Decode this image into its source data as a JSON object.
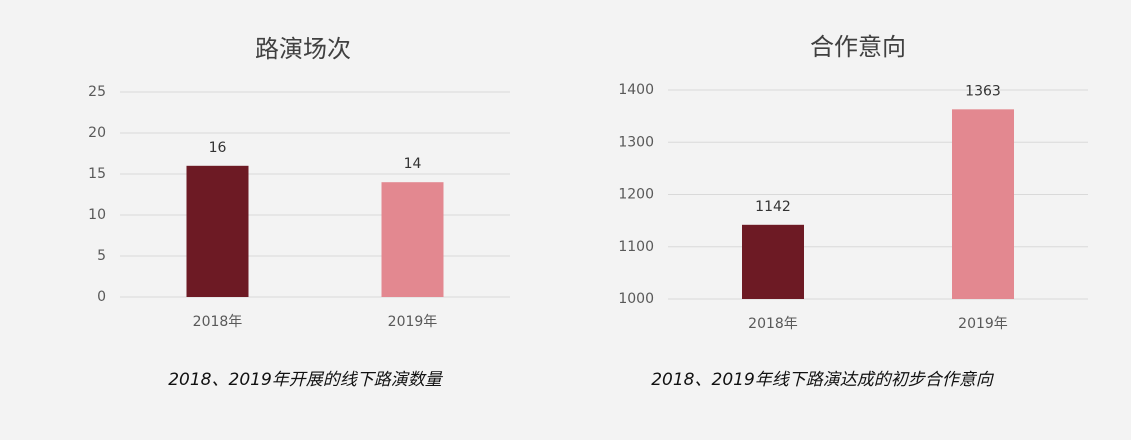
{
  "chart_data": [
    {
      "type": "bar",
      "title": "路演场次",
      "caption": "2018、2019年开展的线下路演数量",
      "categories": [
        "2018年",
        "2019年"
      ],
      "values": [
        16,
        14
      ],
      "colors": [
        "#6d1a24",
        "#e38890"
      ],
      "ylim": [
        0,
        25
      ],
      "yticks": [
        0,
        5,
        10,
        15,
        20,
        25
      ],
      "grid": true
    },
    {
      "type": "bar",
      "title": "合作意向",
      "caption": "2018、2019年线下路演达成的初步合作意向",
      "categories": [
        "2018年",
        "2019年"
      ],
      "values": [
        1142,
        1363
      ],
      "colors": [
        "#6d1a24",
        "#e38890"
      ],
      "ylim": [
        1000,
        1400
      ],
      "yticks": [
        1000,
        1100,
        1200,
        1300,
        1400
      ],
      "grid": true
    }
  ]
}
